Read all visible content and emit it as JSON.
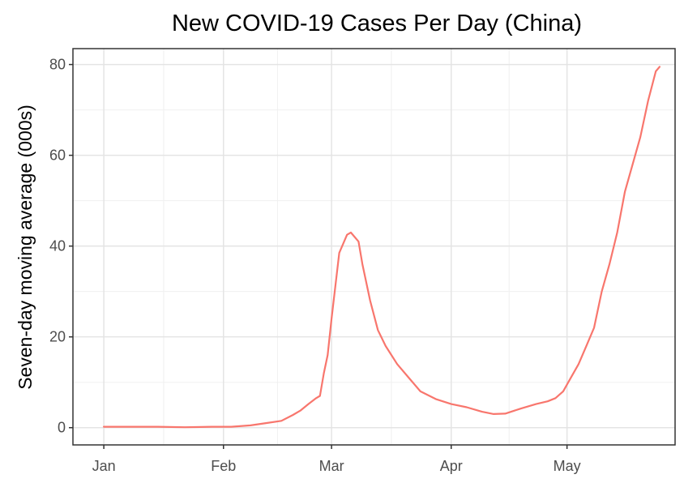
{
  "chart_data": {
    "type": "line",
    "title": "New COVID-19 Cases Per Day (China)",
    "xlabel": "",
    "ylabel": "Seven-day moving average (000s)",
    "x_ticks": [
      "Jan",
      "Feb",
      "Mar",
      "Apr",
      "May"
    ],
    "x_tick_dates": [
      "2022-01-01",
      "2022-02-01",
      "2022-03-01",
      "2022-04-01",
      "2022-05-01"
    ],
    "y_ticks": [
      0,
      20,
      40,
      60,
      80
    ],
    "xlim": [
      "2021-12-24",
      "2022-05-29"
    ],
    "ylim": [
      -3.8,
      83.5
    ],
    "grid": true,
    "legend": "none",
    "line_color": "#F8766D",
    "series": [
      {
        "x": [
          "2022-01-01",
          "2022-01-08",
          "2022-01-15",
          "2022-01-22",
          "2022-01-29",
          "2022-02-03",
          "2022-02-08",
          "2022-02-12",
          "2022-02-16",
          "2022-02-19",
          "2022-02-21",
          "2022-02-23",
          "2022-02-25",
          "2022-02-26",
          "2022-02-27",
          "2022-02-28",
          "2022-03-01",
          "2022-03-03",
          "2022-03-05",
          "2022-03-06",
          "2022-03-07",
          "2022-03-08",
          "2022-03-09",
          "2022-03-11",
          "2022-03-13",
          "2022-03-15",
          "2022-03-18",
          "2022-03-21",
          "2022-03-24",
          "2022-03-28",
          "2022-04-01",
          "2022-04-05",
          "2022-04-09",
          "2022-04-12",
          "2022-04-15",
          "2022-04-19",
          "2022-04-23",
          "2022-04-26",
          "2022-04-28",
          "2022-04-30",
          "2022-05-02",
          "2022-05-04",
          "2022-05-06",
          "2022-05-08",
          "2022-05-10",
          "2022-05-12",
          "2022-05-14",
          "2022-05-16",
          "2022-05-18",
          "2022-05-20",
          "2022-05-22",
          "2022-05-24",
          "2022-05-25"
        ],
        "y": [
          0.2,
          0.2,
          0.2,
          0.1,
          0.2,
          0.2,
          0.5,
          1.0,
          1.5,
          2.8,
          3.8,
          5.2,
          6.5,
          7.0,
          12.0,
          16.0,
          24.0,
          38.5,
          42.5,
          43.0,
          42.0,
          41.0,
          36.0,
          28.0,
          21.5,
          18.0,
          14.0,
          11.0,
          8.0,
          6.3,
          5.2,
          4.5,
          3.5,
          3.0,
          3.1,
          4.2,
          5.2,
          5.8,
          6.5,
          8.0,
          11.0,
          14.0,
          18.0,
          22.0,
          30.0,
          36.0,
          43.0,
          52.0,
          58.0,
          64.0,
          72.0,
          78.5,
          79.5
        ]
      }
    ]
  }
}
